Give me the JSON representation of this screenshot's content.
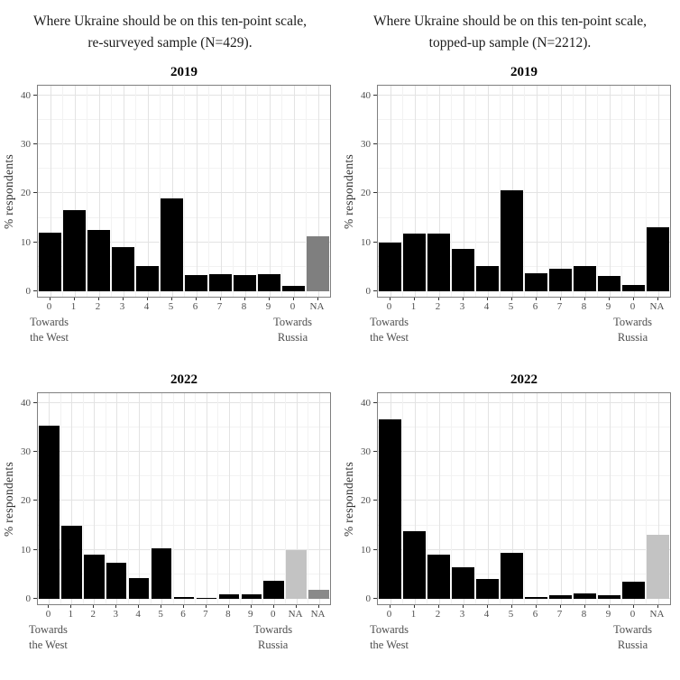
{
  "header": {
    "left": {
      "line1": "Where Ukraine should be on this ten-point scale,",
      "line2": "re-surveyed sample (N=429)."
    },
    "right": {
      "line1": "Where Ukraine should be on this ten-point scale,",
      "line2": "topped-up sample (N=2212)."
    }
  },
  "chart_data": [
    {
      "type": "bar",
      "panel": "top-left",
      "title": "2019",
      "ylabel": "% respondents",
      "yticks": [
        0,
        10,
        20,
        30,
        40
      ],
      "ylim": [
        0,
        42.5
      ],
      "grid": "major and minor, light gray, on",
      "legend": "none",
      "categories": [
        "0",
        "1",
        "2",
        "3",
        "4",
        "5",
        "6",
        "7",
        "8",
        "9",
        "0",
        "NA"
      ],
      "values": [
        12,
        16.5,
        12.5,
        9,
        5.1,
        18.9,
        3.3,
        3.5,
        3.3,
        3.5,
        1.1,
        11.2
      ],
      "bar_colors": [
        "#000000",
        "#000000",
        "#000000",
        "#000000",
        "#000000",
        "#000000",
        "#000000",
        "#000000",
        "#000000",
        "#000000",
        "#000000",
        "#7f7f7f"
      ],
      "annotations": [
        {
          "at": 0,
          "lines": [
            "Towards",
            "the West"
          ]
        },
        {
          "at": 10,
          "lines": [
            "Towards",
            "Russia"
          ]
        }
      ]
    },
    {
      "type": "bar",
      "panel": "top-right",
      "title": "2019",
      "ylabel": "% respondents",
      "yticks": [
        0,
        10,
        20,
        30,
        40
      ],
      "ylim": [
        0,
        42.5
      ],
      "grid": "major and minor, light gray, on",
      "legend": "none",
      "categories": [
        "0",
        "1",
        "2",
        "3",
        "4",
        "5",
        "6",
        "7",
        "8",
        "9",
        "0",
        "NA"
      ],
      "values": [
        10,
        11.8,
        11.8,
        8.6,
        5.1,
        20.6,
        3.6,
        4.7,
        5.2,
        3.2,
        1.3,
        13.1
      ],
      "bar_colors": [
        "#000000",
        "#000000",
        "#000000",
        "#000000",
        "#000000",
        "#000000",
        "#000000",
        "#000000",
        "#000000",
        "#000000",
        "#000000",
        "#000000"
      ],
      "annotations": [
        {
          "at": 0,
          "lines": [
            "Towards",
            "the West"
          ]
        },
        {
          "at": 10,
          "lines": [
            "Towards",
            "Russia"
          ]
        }
      ]
    },
    {
      "type": "bar",
      "panel": "bottom-left",
      "title": "2022",
      "ylabel": "% respondents",
      "yticks": [
        0,
        10,
        20,
        30,
        40
      ],
      "ylim": [
        0,
        42.5
      ],
      "grid": "major and minor, light gray, on",
      "legend": "none",
      "categories": [
        "0",
        "1",
        "2",
        "3",
        "4",
        "5",
        "6",
        "7",
        "8",
        "9",
        "0",
        "NA",
        "NA"
      ],
      "values": [
        35.3,
        15,
        9,
        7.3,
        4.3,
        10.4,
        0.4,
        0.2,
        0.9,
        0.9,
        3.7,
        10,
        1.8
      ],
      "bar_colors": [
        "#000000",
        "#000000",
        "#000000",
        "#000000",
        "#000000",
        "#000000",
        "#000000",
        "#000000",
        "#000000",
        "#000000",
        "#000000",
        "#c3c3c3",
        "#8a8a8a"
      ],
      "annotations": [
        {
          "at": 0,
          "lines": [
            "Towards",
            "the West"
          ]
        },
        {
          "at": 10,
          "lines": [
            "Towards",
            "Russia"
          ]
        }
      ]
    },
    {
      "type": "bar",
      "panel": "bottom-right",
      "title": "2022",
      "ylabel": "% respondents",
      "yticks": [
        0,
        10,
        20,
        30,
        40
      ],
      "ylim": [
        0,
        42.5
      ],
      "grid": "major and minor, light gray, on",
      "legend": "none",
      "categories": [
        "0",
        "1",
        "2",
        "3",
        "4",
        "5",
        "6",
        "7",
        "8",
        "9",
        "0",
        "NA"
      ],
      "values": [
        36.6,
        13.9,
        9,
        6.5,
        4,
        9.4,
        0.4,
        0.7,
        1.1,
        0.7,
        3.5,
        13.1
      ],
      "bar_colors": [
        "#000000",
        "#000000",
        "#000000",
        "#000000",
        "#000000",
        "#000000",
        "#000000",
        "#000000",
        "#000000",
        "#000000",
        "#000000",
        "#c3c3c3"
      ],
      "annotations": [
        {
          "at": 0,
          "lines": [
            "Towards",
            "the West"
          ]
        },
        {
          "at": 10,
          "lines": [
            "Towards",
            "Russia"
          ]
        }
      ]
    }
  ]
}
